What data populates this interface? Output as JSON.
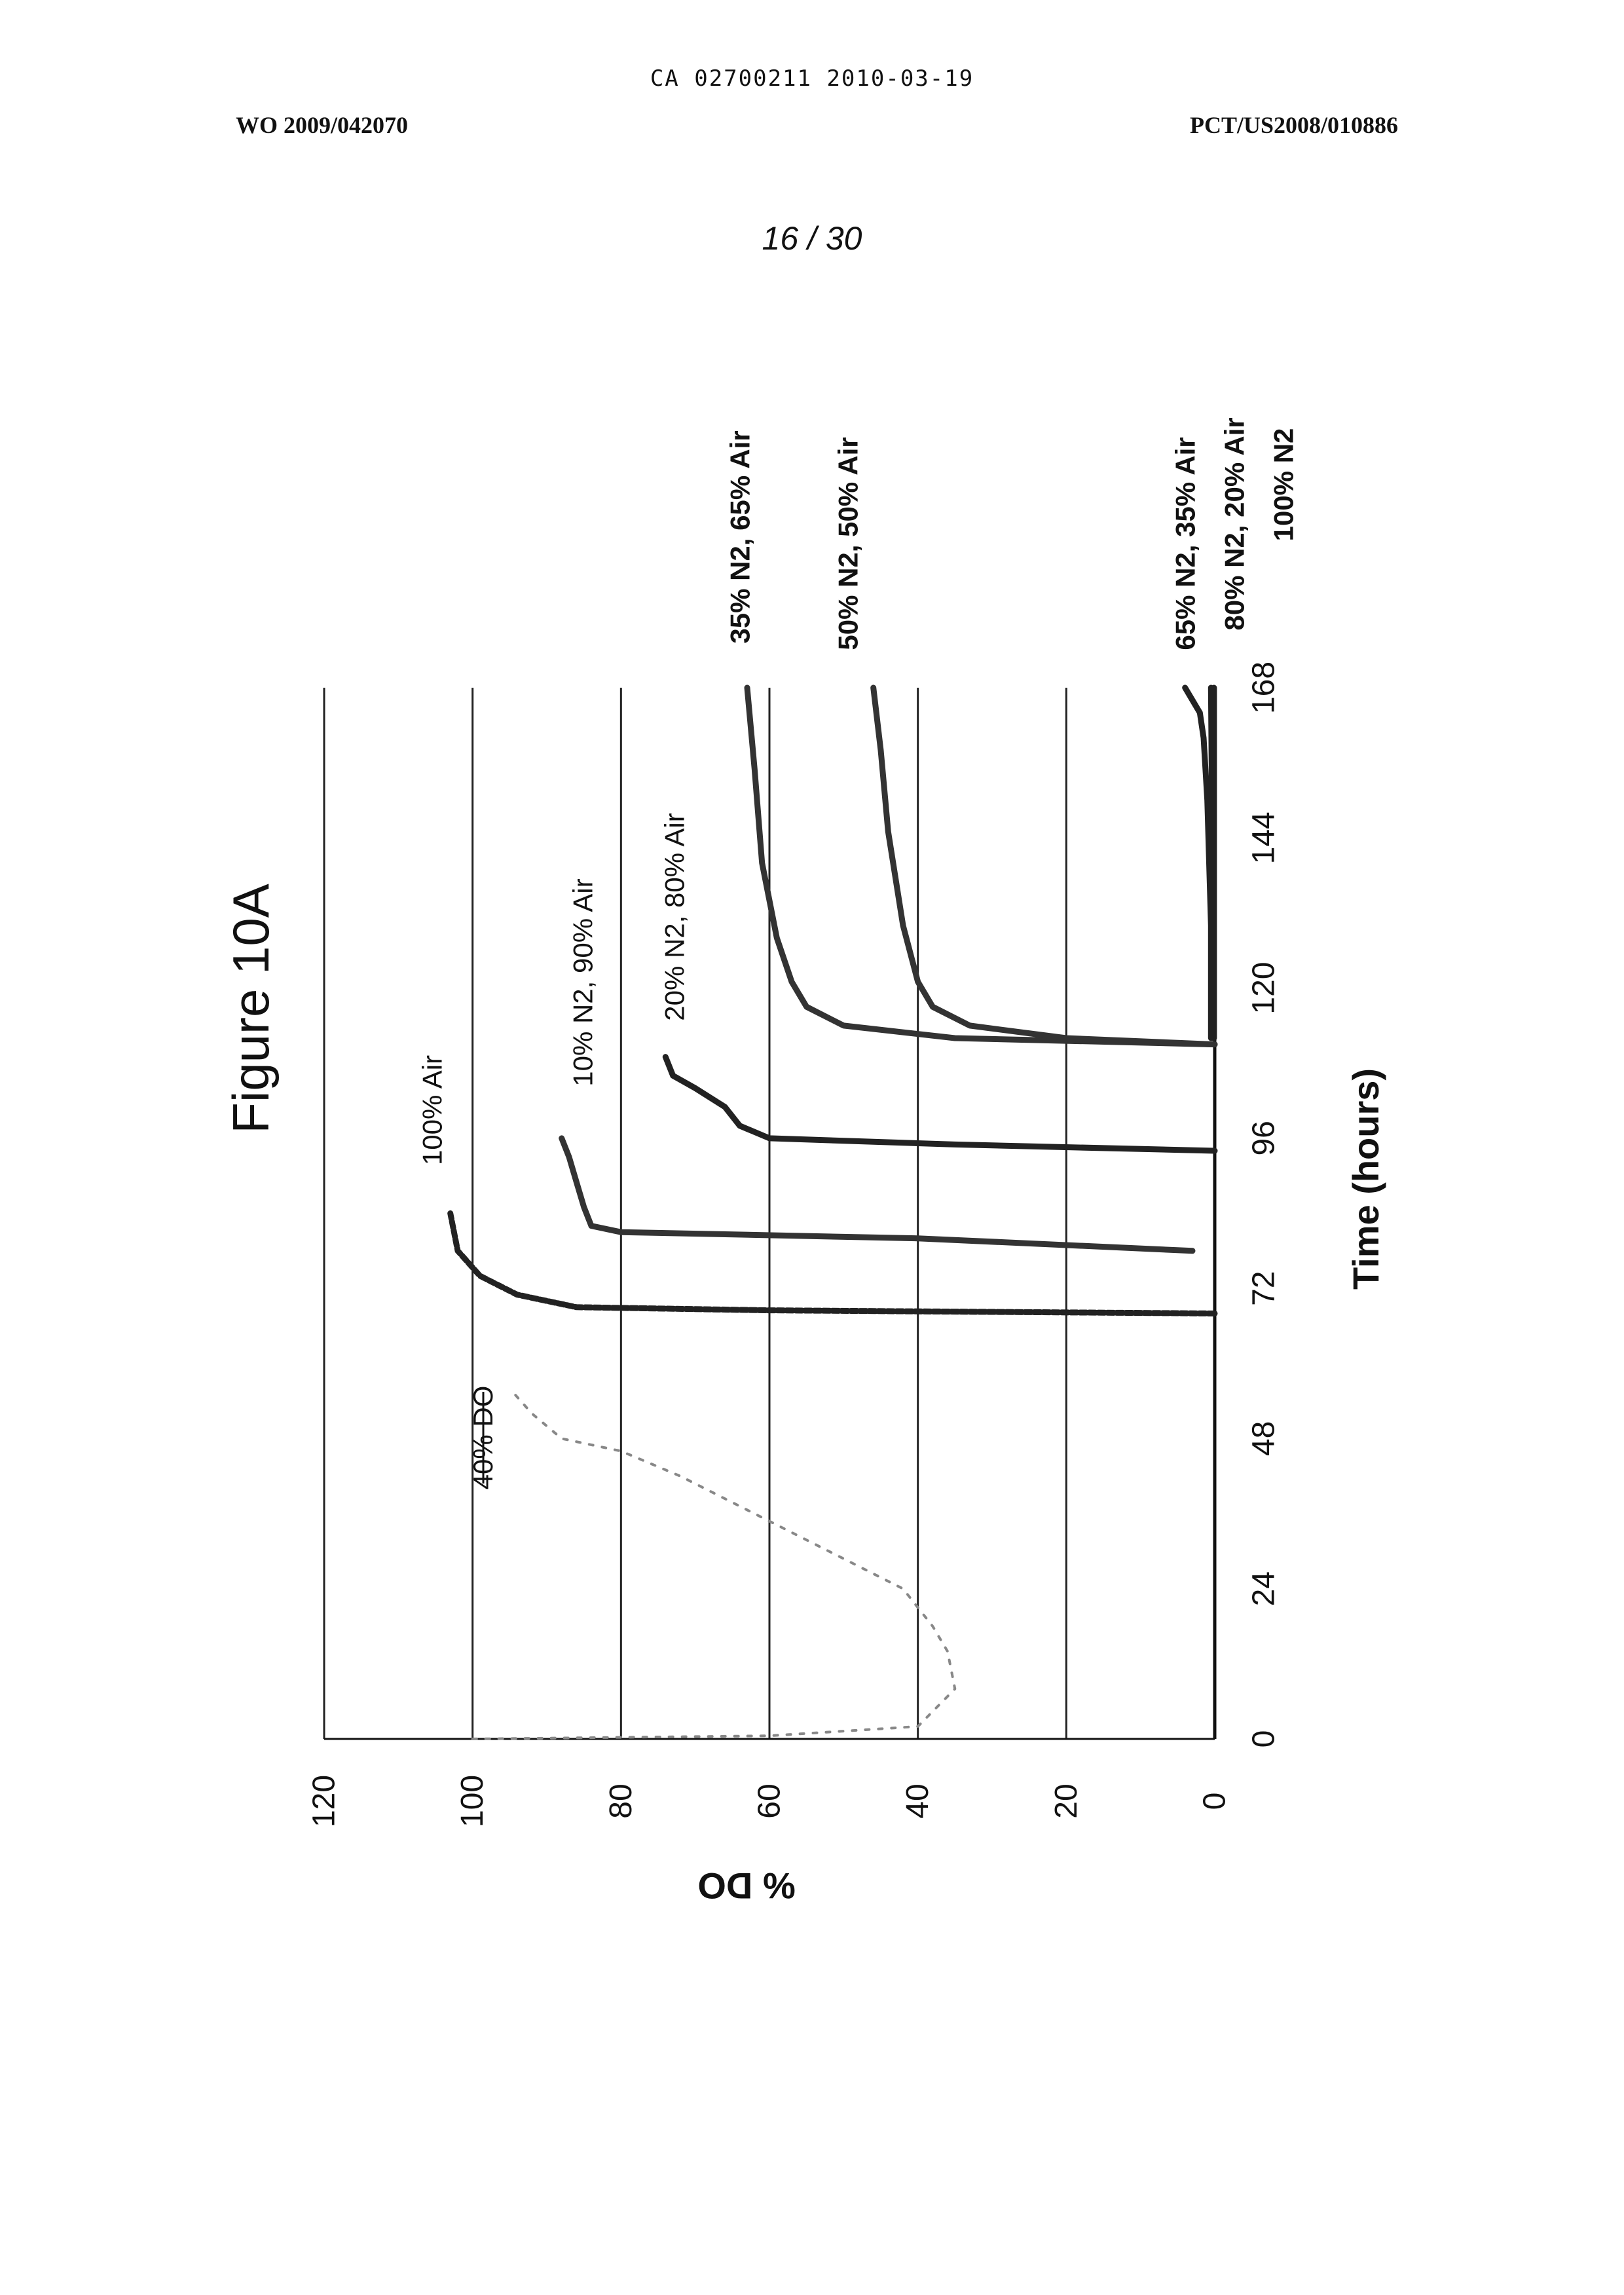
{
  "header": {
    "ca_number": "CA 02700211 2010-03-19",
    "wo_number": "WO 2009/042070",
    "pct_number": "PCT/US2008/010886",
    "page_number": "16 / 30"
  },
  "chart_data": {
    "type": "line",
    "orientation": "rotated 90 degrees counter-clockwise",
    "title": "Figure 10A",
    "xlabel": "Time (hours)",
    "ylabel": "% DO",
    "xlim": [
      0,
      168
    ],
    "ylim": [
      0,
      120
    ],
    "x_ticks": [
      "0",
      "24",
      "48",
      "72",
      "96",
      "120",
      "144",
      "168"
    ],
    "y_ticks": [
      "0",
      "20",
      "40",
      "60",
      "80",
      "100",
      "120"
    ],
    "grid": true,
    "annotation": "40% DO",
    "series": [
      {
        "name": "100% Air",
        "color": "#222222",
        "points": [
          [
            68,
            0
          ],
          [
            68.5,
            60
          ],
          [
            69,
            86
          ],
          [
            71,
            94
          ],
          [
            74,
            99
          ],
          [
            78,
            102
          ],
          [
            84,
            103
          ]
        ]
      },
      {
        "name": "10% N2, 90% Air",
        "color": "#333333",
        "points": [
          [
            78,
            3
          ],
          [
            80,
            40
          ],
          [
            81,
            80
          ],
          [
            82,
            84
          ],
          [
            85,
            85
          ],
          [
            89,
            86
          ],
          [
            93,
            87
          ],
          [
            96,
            88
          ]
        ]
      },
      {
        "name": "20% N2, 80% Air",
        "color": "#222222",
        "points": [
          [
            94,
            0
          ],
          [
            95,
            35
          ],
          [
            96,
            60
          ],
          [
            98,
            64
          ],
          [
            101,
            66
          ],
          [
            104,
            70
          ],
          [
            106,
            73
          ],
          [
            109,
            74
          ]
        ]
      },
      {
        "name": "35% N2, 65% Air",
        "color": "#333333",
        "points": [
          [
            111,
            0
          ],
          [
            112,
            35
          ],
          [
            114,
            50
          ],
          [
            117,
            55
          ],
          [
            121,
            57
          ],
          [
            128,
            59
          ],
          [
            140,
            61
          ],
          [
            155,
            62
          ],
          [
            168,
            63
          ]
        ]
      },
      {
        "name": "50% N2, 50% Air",
        "color": "#333333",
        "points": [
          [
            111,
            0
          ],
          [
            112,
            20
          ],
          [
            114,
            33
          ],
          [
            117,
            38
          ],
          [
            121,
            40
          ],
          [
            130,
            42
          ],
          [
            145,
            44
          ],
          [
            158,
            45
          ],
          [
            168,
            46
          ]
        ]
      },
      {
        "name": "65% N2, 35% Air",
        "color": "#222222",
        "points": [
          [
            112,
            0.5
          ],
          [
            130,
            0.5
          ],
          [
            150,
            1
          ],
          [
            160,
            1.5
          ],
          [
            164,
            2
          ],
          [
            166,
            3
          ],
          [
            168,
            4
          ]
        ]
      },
      {
        "name": "80% N2, 20% Air",
        "color": "#222222",
        "points": [
          [
            112,
            0.3
          ],
          [
            140,
            0.3
          ],
          [
            168,
            0.5
          ]
        ]
      },
      {
        "name": "100% N2",
        "color": "#222222",
        "points": [
          [
            112,
            0.1
          ],
          [
            168,
            0.1
          ]
        ]
      },
      {
        "name": "",
        "color": "#888888",
        "points": [
          [
            0,
            100
          ],
          [
            0.5,
            60
          ],
          [
            2,
            40
          ],
          [
            8,
            35
          ],
          [
            14,
            36
          ],
          [
            18,
            38
          ],
          [
            24,
            42
          ],
          [
            30,
            52
          ],
          [
            36,
            62
          ],
          [
            42,
            72
          ],
          [
            46,
            80
          ],
          [
            48,
            88
          ],
          [
            52,
            92
          ],
          [
            56,
            95
          ]
        ]
      }
    ]
  }
}
